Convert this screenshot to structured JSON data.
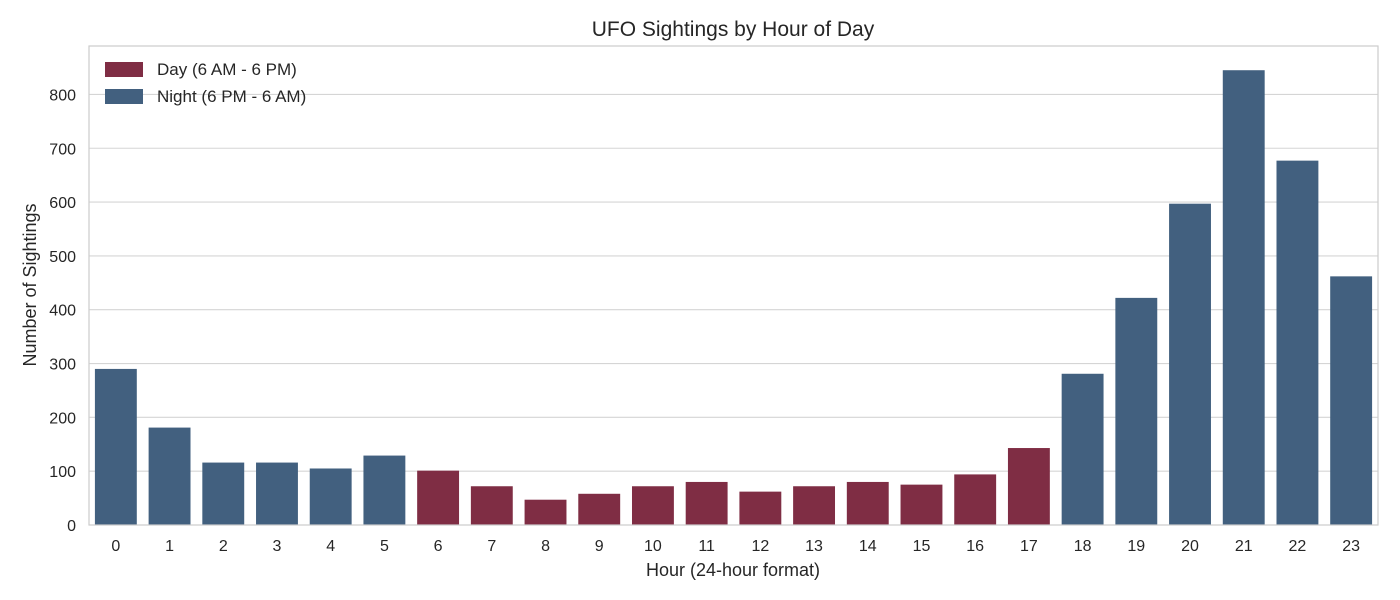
{
  "chart_data": {
    "type": "bar",
    "title": "UFO Sightings by Hour of Day",
    "xlabel": "Hour (24-hour format)",
    "ylabel": "Number of Sightings",
    "ylim": [
      0,
      890
    ],
    "yticks": [
      0,
      100,
      200,
      300,
      400,
      500,
      600,
      700,
      800
    ],
    "grid": "horizontal",
    "legend_position": "top-left",
    "categories": [
      "0",
      "1",
      "2",
      "3",
      "4",
      "5",
      "6",
      "7",
      "8",
      "9",
      "10",
      "11",
      "12",
      "13",
      "14",
      "15",
      "16",
      "17",
      "18",
      "19",
      "20",
      "21",
      "22",
      "23"
    ],
    "values": [
      290,
      181,
      116,
      116,
      105,
      129,
      101,
      72,
      47,
      58,
      72,
      80,
      62,
      72,
      80,
      75,
      94,
      143,
      281,
      422,
      597,
      845,
      677,
      462
    ],
    "groups": [
      "Night",
      "Night",
      "Night",
      "Night",
      "Night",
      "Night",
      "Day",
      "Day",
      "Day",
      "Day",
      "Day",
      "Day",
      "Day",
      "Day",
      "Day",
      "Day",
      "Day",
      "Day",
      "Night",
      "Night",
      "Night",
      "Night",
      "Night",
      "Night"
    ],
    "legend": [
      {
        "key": "Day",
        "label": "Day (6 AM - 6 PM)",
        "color": "#7F2D44"
      },
      {
        "key": "Night",
        "label": "Night (6 PM - 6 AM)",
        "color": "#42607F"
      }
    ]
  }
}
